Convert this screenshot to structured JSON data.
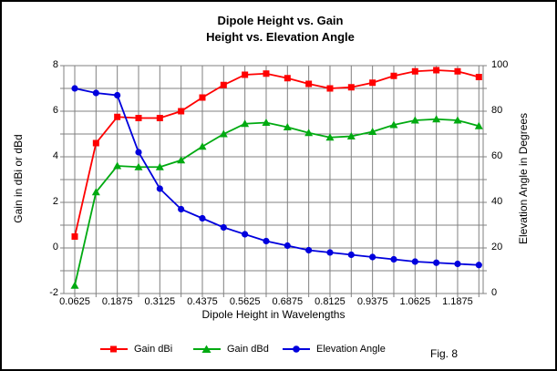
{
  "figure": {
    "title_line1": "Dipole Height vs. Gain",
    "title_line2": "Height vs. Elevation Angle",
    "fig_label": "Fig. 8"
  },
  "chart_data": {
    "type": "line",
    "title": "Dipole Height vs. Gain — Height vs. Elevation Angle",
    "xlabel": "Dipole Height in Wavelengths",
    "ylabel_left": "Gain in dBi or dBd",
    "ylabel_right": "Elevation Angle in Degrees",
    "x": [
      0.0625,
      0.125,
      0.1875,
      0.25,
      0.3125,
      0.375,
      0.4375,
      0.5,
      0.5625,
      0.625,
      0.6875,
      0.75,
      0.8125,
      0.875,
      0.9375,
      1.0,
      1.0625,
      1.125,
      1.1875,
      1.25
    ],
    "x_tick_labels": [
      "0.0625",
      "0.1875",
      "0.3125",
      "0.4375",
      "0.5625",
      "0.6875",
      "0.8125",
      "0.9375",
      "1.0625",
      "1.1875"
    ],
    "ylim_left": [
      -2,
      8
    ],
    "y_tick_labels_left": [
      "8",
      "6",
      "4",
      "2",
      "0",
      "-2"
    ],
    "ylim_right": [
      0,
      100
    ],
    "y_tick_labels_right": [
      "100",
      "80",
      "60",
      "40",
      "20",
      "0"
    ],
    "grid": true,
    "legend_position": "bottom",
    "series": [
      {
        "name": "Gain dBi",
        "axis": "left",
        "color": "#ff0000",
        "marker": "square",
        "values": [
          0.5,
          4.6,
          5.75,
          5.7,
          5.7,
          6.0,
          6.6,
          7.15,
          7.6,
          7.65,
          7.45,
          7.2,
          7.0,
          7.05,
          7.25,
          7.55,
          7.75,
          7.8,
          7.75,
          7.5
        ]
      },
      {
        "name": "Gain dBd",
        "axis": "left",
        "color": "#00aa11",
        "marker": "triangle",
        "values": [
          -1.65,
          2.45,
          3.6,
          3.55,
          3.55,
          3.85,
          4.45,
          5.0,
          5.45,
          5.5,
          5.3,
          5.05,
          4.85,
          4.9,
          5.1,
          5.4,
          5.6,
          5.65,
          5.6,
          5.35
        ]
      },
      {
        "name": "Elevation Angle",
        "axis": "right",
        "color": "#0000dd",
        "marker": "circle",
        "values": [
          90,
          88,
          87,
          62,
          46,
          37,
          33,
          29,
          26,
          23,
          21,
          19,
          18,
          17,
          16,
          15,
          14,
          13.5,
          13,
          12.5
        ]
      }
    ]
  },
  "colors": {
    "grid": "#808080",
    "frame": "#000000",
    "background": "#ffffff",
    "text": "#000000"
  }
}
